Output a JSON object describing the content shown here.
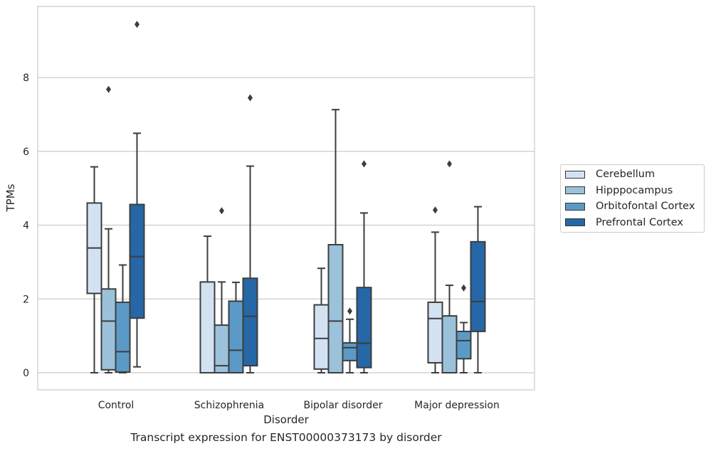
{
  "chart_data": {
    "type": "box",
    "xlabel": "Disorder",
    "ylabel": "TPMs",
    "caption": "Transcript expression for ENST00000373173 by disorder",
    "ylim": [
      -0.45,
      9.95
    ],
    "yticks": [
      0,
      2,
      4,
      6,
      8
    ],
    "grid": "horizontal",
    "legend_position": "right",
    "categories": [
      "Control",
      "Schizophrenia",
      "Bipolar disorder",
      "Major depression"
    ],
    "series": [
      {
        "name": "Cerebellum",
        "color": "#d3e2f3",
        "boxes": [
          {
            "whisker_low": 0.0,
            "q1": 2.15,
            "median": 3.38,
            "q3": 4.6,
            "whisker_high": 5.58,
            "outliers": []
          },
          {
            "whisker_low": 0.0,
            "q1": 0.0,
            "median": 0.0,
            "q3": 2.46,
            "whisker_high": 3.7,
            "outliers": []
          },
          {
            "whisker_low": 0.0,
            "q1": 0.1,
            "median": 0.93,
            "q3": 1.84,
            "whisker_high": 2.83,
            "outliers": []
          },
          {
            "whisker_low": 0.0,
            "q1": 0.27,
            "median": 1.47,
            "q3": 1.91,
            "whisker_high": 3.81,
            "outliers": [
              4.41
            ]
          }
        ]
      },
      {
        "name": "Hipppocampus",
        "color": "#9bc2da",
        "boxes": [
          {
            "whisker_low": 0.0,
            "q1": 0.08,
            "median": 1.4,
            "q3": 2.27,
            "whisker_high": 3.9,
            "outliers": [
              7.68
            ]
          },
          {
            "whisker_low": 0.0,
            "q1": 0.0,
            "median": 0.19,
            "q3": 1.29,
            "whisker_high": 2.46,
            "outliers": [
              4.39
            ]
          },
          {
            "whisker_low": 0.0,
            "q1": 0.0,
            "median": 1.4,
            "q3": 3.47,
            "whisker_high": 7.13,
            "outliers": []
          },
          {
            "whisker_low": 0.0,
            "q1": 0.0,
            "median": 0.0,
            "q3": 1.54,
            "whisker_high": 2.37,
            "outliers": [
              5.66
            ]
          }
        ]
      },
      {
        "name": "Orbitofontal Cortex",
        "color": "#5b9ac6",
        "boxes": [
          {
            "whisker_low": 0.0,
            "q1": 0.02,
            "median": 0.57,
            "q3": 1.91,
            "whisker_high": 2.92,
            "outliers": []
          },
          {
            "whisker_low": 0.0,
            "q1": 0.0,
            "median": 0.61,
            "q3": 1.94,
            "whisker_high": 2.45,
            "outliers": []
          },
          {
            "whisker_low": 0.0,
            "q1": 0.33,
            "median": 0.68,
            "q3": 0.81,
            "whisker_high": 1.45,
            "outliers": [
              1.67
            ]
          },
          {
            "whisker_low": 0.0,
            "q1": 0.38,
            "median": 0.87,
            "q3": 1.12,
            "whisker_high": 1.36,
            "outliers": [
              2.3
            ]
          }
        ]
      },
      {
        "name": "Prefrontal Cortex",
        "color": "#2667a7",
        "boxes": [
          {
            "whisker_low": 0.16,
            "q1": 1.48,
            "median": 3.15,
            "q3": 4.56,
            "whisker_high": 6.49,
            "outliers": [
              9.44
            ]
          },
          {
            "whisker_low": 0.0,
            "q1": 0.19,
            "median": 1.53,
            "q3": 2.56,
            "whisker_high": 5.6,
            "outliers": [
              7.45
            ]
          },
          {
            "whisker_low": 0.0,
            "q1": 0.14,
            "median": 0.8,
            "q3": 2.31,
            "whisker_high": 4.33,
            "outliers": [
              5.66
            ]
          },
          {
            "whisker_low": 0.0,
            "q1": 1.12,
            "median": 1.93,
            "q3": 3.55,
            "whisker_high": 4.5,
            "outliers": []
          }
        ]
      }
    ]
  }
}
